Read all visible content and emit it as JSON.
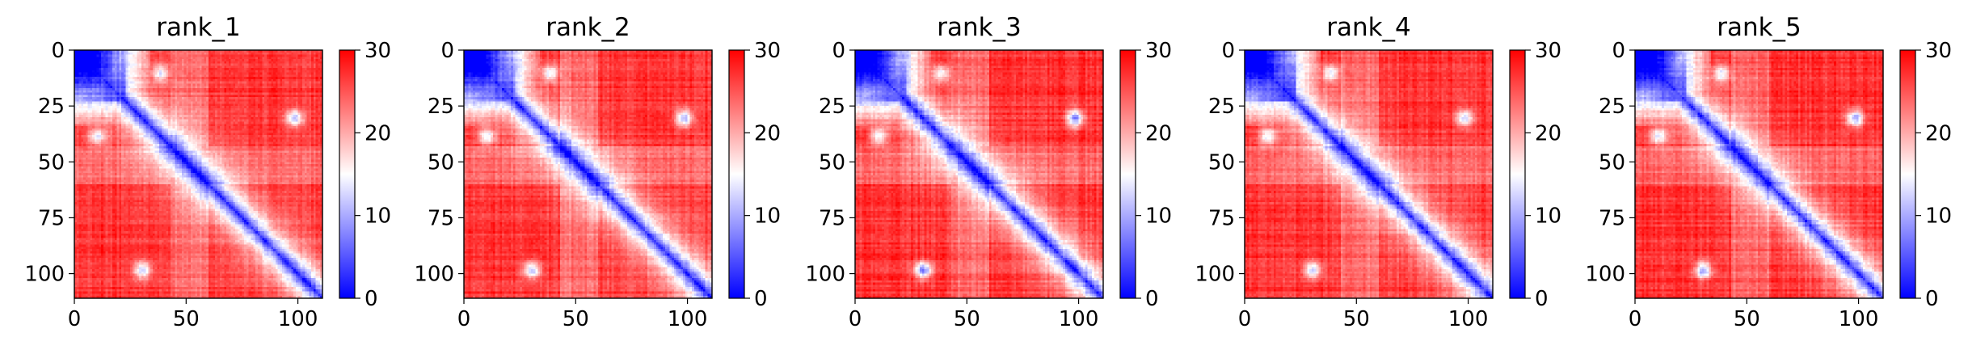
{
  "chart_data": [
    {
      "type": "heatmap",
      "title": "rank_1",
      "x_ticks": [
        "0",
        "50",
        "100"
      ],
      "x_tick_values": [
        0,
        50,
        100
      ],
      "y_ticks": [
        "0",
        "25",
        "50",
        "75",
        "100"
      ],
      "y_tick_values": [
        0,
        25,
        50,
        75,
        100
      ],
      "xlim": [
        0,
        111
      ],
      "ylim": [
        111,
        0
      ],
      "colorbar": {
        "ticks": [
          "0",
          "10",
          "20",
          "30"
        ],
        "tick_values": [
          0,
          10,
          20,
          30
        ],
        "range": [
          0,
          30
        ],
        "colormap": "bwr"
      },
      "features": {
        "diagonal_value": 2,
        "background_value": 27,
        "n": 111,
        "blue_block": [
          0,
          22
        ],
        "spots": [
          {
            "i": 30,
            "j": 98,
            "v": 12
          },
          {
            "i": 98,
            "j": 30,
            "v": 13
          },
          {
            "i": 10,
            "j": 38,
            "v": 14
          },
          {
            "i": 38,
            "j": 10,
            "v": 14
          }
        ]
      }
    },
    {
      "type": "heatmap",
      "title": "rank_2",
      "x_ticks": [
        "0",
        "50",
        "100"
      ],
      "x_tick_values": [
        0,
        50,
        100
      ],
      "y_ticks": [
        "0",
        "25",
        "50",
        "75",
        "100"
      ],
      "y_tick_values": [
        0,
        25,
        50,
        75,
        100
      ],
      "xlim": [
        0,
        111
      ],
      "ylim": [
        111,
        0
      ],
      "colorbar": {
        "ticks": [
          "0",
          "10",
          "20",
          "30"
        ],
        "tick_values": [
          0,
          10,
          20,
          30
        ],
        "range": [
          0,
          30
        ],
        "colormap": "bwr"
      },
      "features": {
        "diagonal_value": 2,
        "background_value": 27,
        "n": 111,
        "blue_block": [
          0,
          22
        ],
        "spots": [
          {
            "i": 30,
            "j": 98,
            "v": 10
          },
          {
            "i": 98,
            "j": 30,
            "v": 11
          },
          {
            "i": 10,
            "j": 38,
            "v": 14
          },
          {
            "i": 38,
            "j": 10,
            "v": 14
          }
        ]
      }
    },
    {
      "type": "heatmap",
      "title": "rank_3",
      "x_ticks": [
        "0",
        "50",
        "100"
      ],
      "x_tick_values": [
        0,
        50,
        100
      ],
      "y_ticks": [
        "0",
        "25",
        "50",
        "75",
        "100"
      ],
      "y_tick_values": [
        0,
        25,
        50,
        75,
        100
      ],
      "xlim": [
        0,
        111
      ],
      "ylim": [
        111,
        0
      ],
      "colorbar": {
        "ticks": [
          "0",
          "10",
          "20",
          "30"
        ],
        "tick_values": [
          0,
          10,
          20,
          30
        ],
        "range": [
          0,
          30
        ],
        "colormap": "bwr"
      },
      "features": {
        "diagonal_value": 2,
        "background_value": 27,
        "n": 111,
        "blue_block": [
          0,
          22
        ],
        "spots": [
          {
            "i": 30,
            "j": 98,
            "v": 9
          },
          {
            "i": 98,
            "j": 30,
            "v": 9
          },
          {
            "i": 10,
            "j": 38,
            "v": 14
          },
          {
            "i": 38,
            "j": 10,
            "v": 14
          }
        ]
      }
    },
    {
      "type": "heatmap",
      "title": "rank_4",
      "x_ticks": [
        "0",
        "50",
        "100"
      ],
      "x_tick_values": [
        0,
        50,
        100
      ],
      "y_ticks": [
        "0",
        "25",
        "50",
        "75",
        "100"
      ],
      "y_tick_values": [
        0,
        25,
        50,
        75,
        100
      ],
      "xlim": [
        0,
        111
      ],
      "ylim": [
        111,
        0
      ],
      "colorbar": {
        "ticks": [
          "0",
          "10",
          "20",
          "30"
        ],
        "tick_values": [
          0,
          10,
          20,
          30
        ],
        "range": [
          0,
          30
        ],
        "colormap": "bwr"
      },
      "features": {
        "diagonal_value": 2,
        "background_value": 27,
        "n": 111,
        "blue_block": [
          0,
          22
        ],
        "spots": [
          {
            "i": 30,
            "j": 98,
            "v": 13
          },
          {
            "i": 98,
            "j": 30,
            "v": 13
          },
          {
            "i": 10,
            "j": 38,
            "v": 14
          },
          {
            "i": 38,
            "j": 10,
            "v": 14
          }
        ]
      }
    },
    {
      "type": "heatmap",
      "title": "rank_5",
      "x_ticks": [
        "0",
        "50",
        "100"
      ],
      "x_tick_values": [
        0,
        50,
        100
      ],
      "y_ticks": [
        "0",
        "25",
        "50",
        "75",
        "100"
      ],
      "y_tick_values": [
        0,
        25,
        50,
        75,
        100
      ],
      "xlim": [
        0,
        111
      ],
      "ylim": [
        111,
        0
      ],
      "colorbar": {
        "ticks": [
          "0",
          "10",
          "20",
          "30"
        ],
        "tick_values": [
          0,
          10,
          20,
          30
        ],
        "range": [
          0,
          30
        ],
        "colormap": "bwr"
      },
      "features": {
        "diagonal_value": 2,
        "background_value": 27,
        "n": 111,
        "blue_block": [
          0,
          22
        ],
        "spots": [
          {
            "i": 30,
            "j": 98,
            "v": 10
          },
          {
            "i": 98,
            "j": 30,
            "v": 10
          },
          {
            "i": 10,
            "j": 38,
            "v": 14
          },
          {
            "i": 38,
            "j": 10,
            "v": 14
          }
        ]
      }
    }
  ]
}
